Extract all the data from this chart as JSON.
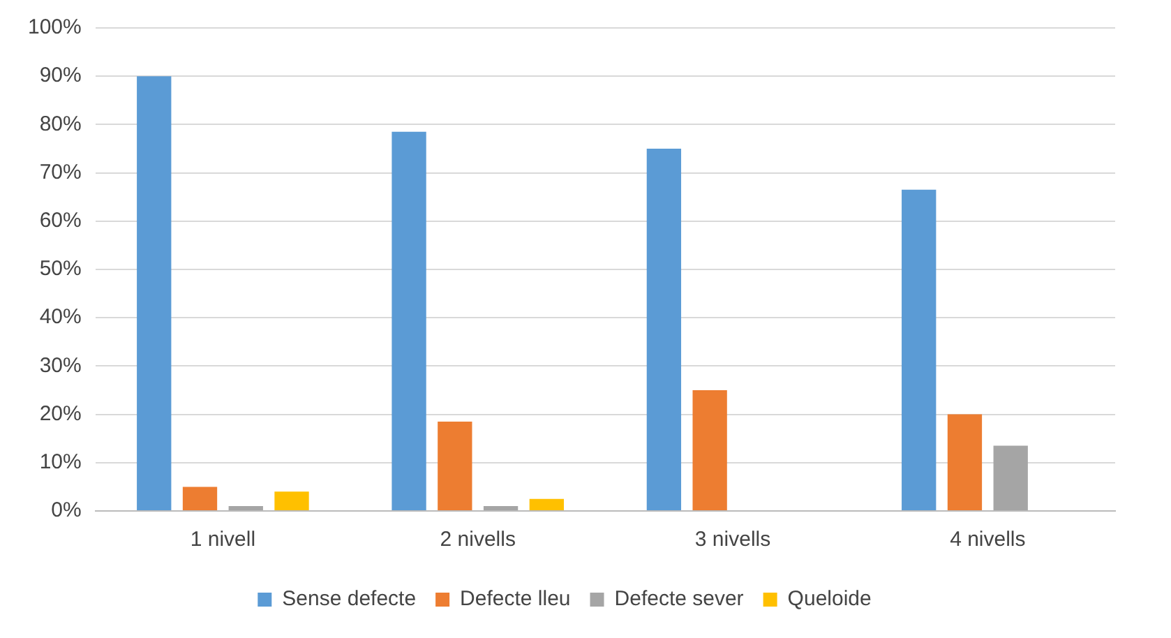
{
  "chart_data": {
    "type": "bar",
    "categories": [
      "1 nivell",
      "2 nivells",
      "3 nivells",
      "4 nivells"
    ],
    "series": [
      {
        "name": "Sense defecte",
        "color": "#5b9bd5",
        "values": [
          90,
          78.5,
          75,
          66.5
        ]
      },
      {
        "name": "Defecte lleu",
        "color": "#ed7d31",
        "values": [
          5,
          18.5,
          25,
          20
        ]
      },
      {
        "name": "Defecte sever",
        "color": "#a5a5a5",
        "values": [
          1,
          1,
          0,
          13.5
        ]
      },
      {
        "name": "Queloide",
        "color": "#ffc000",
        "values": [
          4,
          2.5,
          0,
          0
        ]
      }
    ],
    "ylim": [
      0,
      100
    ],
    "yticks": [
      {
        "value": 0,
        "label": "0%"
      },
      {
        "value": 10,
        "label": "10%"
      },
      {
        "value": 20,
        "label": "20%"
      },
      {
        "value": 30,
        "label": "30%"
      },
      {
        "value": 40,
        "label": "40%"
      },
      {
        "value": 50,
        "label": "50%"
      },
      {
        "value": 60,
        "label": "60%"
      },
      {
        "value": 70,
        "label": "70%"
      },
      {
        "value": 80,
        "label": "80%"
      },
      {
        "value": 90,
        "label": "90%"
      },
      {
        "value": 100,
        "label": "100%"
      }
    ],
    "grid": "y",
    "legend": "bottom"
  }
}
